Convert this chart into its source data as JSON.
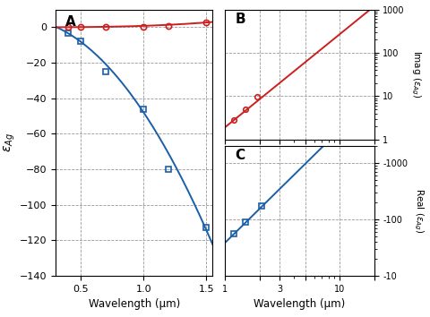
{
  "panel_A": {
    "label": "A",
    "xlim": [
      0.3,
      1.55
    ],
    "ylim": [
      -140,
      10
    ],
    "xticks": [
      0.5,
      1.0,
      1.5
    ],
    "yticks": [
      0,
      -20,
      -40,
      -60,
      -80,
      -100,
      -120,
      -140
    ],
    "xlabel": "Wavelength (μm)",
    "ylabel": "ε_Ag",
    "real_data_x": [
      0.4,
      0.5,
      0.7,
      1.0,
      1.2,
      1.5
    ],
    "real_data_y": [
      -3.5,
      -8,
      -25,
      -46,
      -80,
      -113
    ],
    "imag_data_x": [
      0.4,
      0.5,
      0.7,
      1.0,
      1.2,
      1.5
    ],
    "imag_data_y": [
      0.3,
      0.15,
      0.1,
      0.2,
      0.5,
      2.5
    ],
    "real_color": "#1a5fa8",
    "imag_color": "#cc2020",
    "grid_color": "#999999",
    "grid_style": "--"
  },
  "panel_B": {
    "label": "B",
    "xlim_log": [
      0.0,
      1.30103
    ],
    "xlim": [
      1.0,
      20.0
    ],
    "ylim": [
      1.0,
      1000.0
    ],
    "ylabel": "Imag (ε_Ag)",
    "data_x": [
      1.2,
      1.5,
      1.9
    ],
    "data_y": [
      2.8,
      5.0,
      9.5
    ],
    "color": "#cc2020",
    "grid_color": "#999999",
    "grid_style": "--",
    "power_n": 2.15,
    "power_A_x0": 1.2,
    "power_A_y0": 2.8
  },
  "panel_C": {
    "label": "C",
    "xlim": [
      1.0,
      20.0
    ],
    "ylim": [
      10.0,
      2000.0
    ],
    "ylabel": "Real (ε_Ag)",
    "data_x": [
      1.2,
      1.5,
      2.1
    ],
    "data_y": [
      55,
      90,
      175
    ],
    "color": "#1a5fa8",
    "grid_color": "#999999",
    "grid_style": "--",
    "power_n": 2.0,
    "power_A_x0": 1.2,
    "power_A_y0": 55,
    "xlabel": "Wavelength (μm)"
  }
}
